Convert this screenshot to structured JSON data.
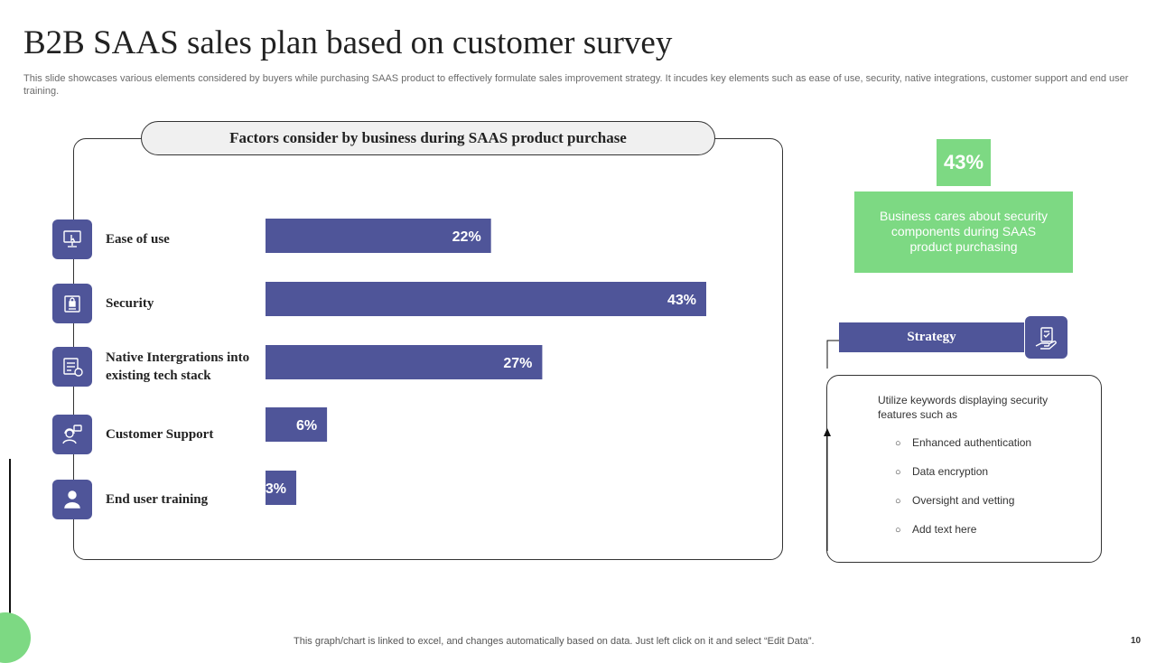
{
  "title": "B2B SAAS  sales plan based on customer survey",
  "subtitle": "This slide showcases various elements considered by buyers while purchasing SAAS product to  effectively formulate sales improvement strategy. It incudes key elements such as ease of use, security, native integrations, customer support and end user training.",
  "panel": {
    "header": "Factors consider by business during  SAAS product purchase"
  },
  "factors": [
    {
      "label": "Ease of use",
      "icon": "monitor-touch-icon"
    },
    {
      "label": "Security",
      "icon": "security-badge-icon"
    },
    {
      "label": "Native Intergrations into  existing tech stack",
      "icon": "integration-screen-icon"
    },
    {
      "label": "Customer Support",
      "icon": "support-agent-icon"
    },
    {
      "label": "End  user training",
      "icon": "trainee-user-icon"
    }
  ],
  "chart_data": {
    "type": "bar",
    "orientation": "horizontal",
    "title": "Factors consider by business during  SAAS product purchase",
    "categories": [
      "Ease of use",
      "Security",
      "Native Intergrations into  existing tech stack",
      "Customer Support",
      "End  user training"
    ],
    "values": [
      22,
      43,
      27,
      6,
      3
    ],
    "value_labels": [
      "22%",
      "43%",
      "27%",
      "6%",
      "3%"
    ],
    "unit": "%",
    "xlim": [
      0,
      43
    ],
    "grid": false,
    "legend": "none",
    "bar_color": "#4f5599"
  },
  "highlight": {
    "value": "43%",
    "note": "Business cares about security components during SAAS product purchasing",
    "color": "#7dd983"
  },
  "strategy": {
    "label": "Strategy",
    "icon": "clipboard-hand-icon",
    "intro": "Utilize keywords displaying security features such as",
    "bullet": "○",
    "items": [
      "Enhanced authentication",
      "Data encryption",
      "Oversight  and vetting",
      "Add text here"
    ]
  },
  "footer": "This graph/chart is linked to excel,  and changes automatically based on data. Just left click on it and select “Edit Data”.",
  "page_number": "10",
  "colors": {
    "accent": "#4f5599",
    "highlight": "#7dd983"
  }
}
